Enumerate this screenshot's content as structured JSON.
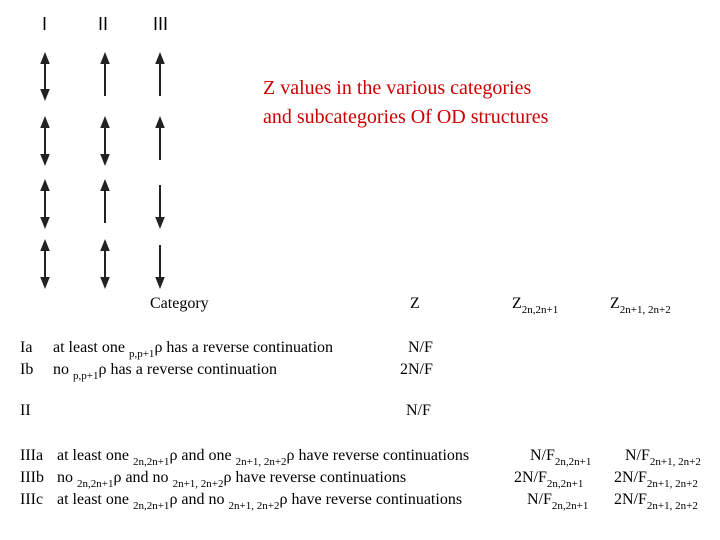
{
  "header": {
    "roman": [
      "I",
      "II",
      "III"
    ]
  },
  "title": [
    "Z values in the various categories",
    "and subcategories Of OD structures"
  ],
  "table": {
    "headers": [
      [
        {
          "t": "Category"
        }
      ],
      [
        {
          "t": "Z"
        }
      ],
      [
        {
          "t": "Z"
        },
        {
          "sub": "2n,2n+1"
        }
      ],
      [
        {
          "t": "Z"
        },
        {
          "sub": "2n+1, 2n+2"
        }
      ]
    ],
    "rows": [
      {
        "label": "Ia",
        "cells": [
          [
            {
              "t": "at least one "
            },
            {
              "sub": "p,p+1"
            },
            {
              "t": "ρ has a reverse continuation"
            }
          ],
          [
            {
              "t": "N/F"
            }
          ]
        ]
      },
      {
        "label": "Ib",
        "cells": [
          [
            {
              "t": "no "
            },
            {
              "sub": "p,p+1"
            },
            {
              "t": "ρ has a reverse continuation"
            }
          ],
          [
            {
              "t": "2N/F"
            }
          ]
        ]
      },
      {
        "label": "II",
        "cells": [
          [
            {
              "t": "N/F"
            }
          ]
        ]
      },
      {
        "label": "IIIa",
        "cells": [
          [
            {
              "t": "at least one "
            },
            {
              "sub": "2n,2n+1"
            },
            {
              "t": "ρ and one "
            },
            {
              "sub": "2n+1, 2n+2"
            },
            {
              "t": "ρ have reverse continuations"
            }
          ],
          [
            {
              "t": "N/F"
            },
            {
              "sub": "2n,2n+1"
            }
          ],
          [
            {
              "t": "N/F"
            },
            {
              "sub": "2n+1, 2n+2"
            }
          ]
        ]
      },
      {
        "label": "IIIb",
        "cells": [
          [
            {
              "t": "no "
            },
            {
              "sub": "2n,2n+1"
            },
            {
              "t": "ρ and no "
            },
            {
              "sub": "2n+1, 2n+2"
            },
            {
              "t": "ρ have reverse continuations"
            }
          ],
          [
            {
              "t": "2N/F"
            },
            {
              "sub": "2n,2n+1"
            }
          ],
          [
            {
              "t": "2N/F"
            },
            {
              "sub": "2n+1, 2n+2"
            }
          ]
        ]
      },
      {
        "label": "IIIc",
        "cells": [
          [
            {
              "t": "at least one "
            },
            {
              "sub": "2n,2n+1"
            },
            {
              "t": "ρ and no "
            },
            {
              "sub": "2n+1, 2n+2"
            },
            {
              "t": "ρ have reverse continuations"
            }
          ],
          [
            {
              "t": "N/F"
            },
            {
              "sub": "2n,2n+1"
            }
          ],
          [
            {
              "t": "2N/F"
            },
            {
              "sub": "2n+1, 2n+2"
            }
          ]
        ]
      }
    ]
  }
}
